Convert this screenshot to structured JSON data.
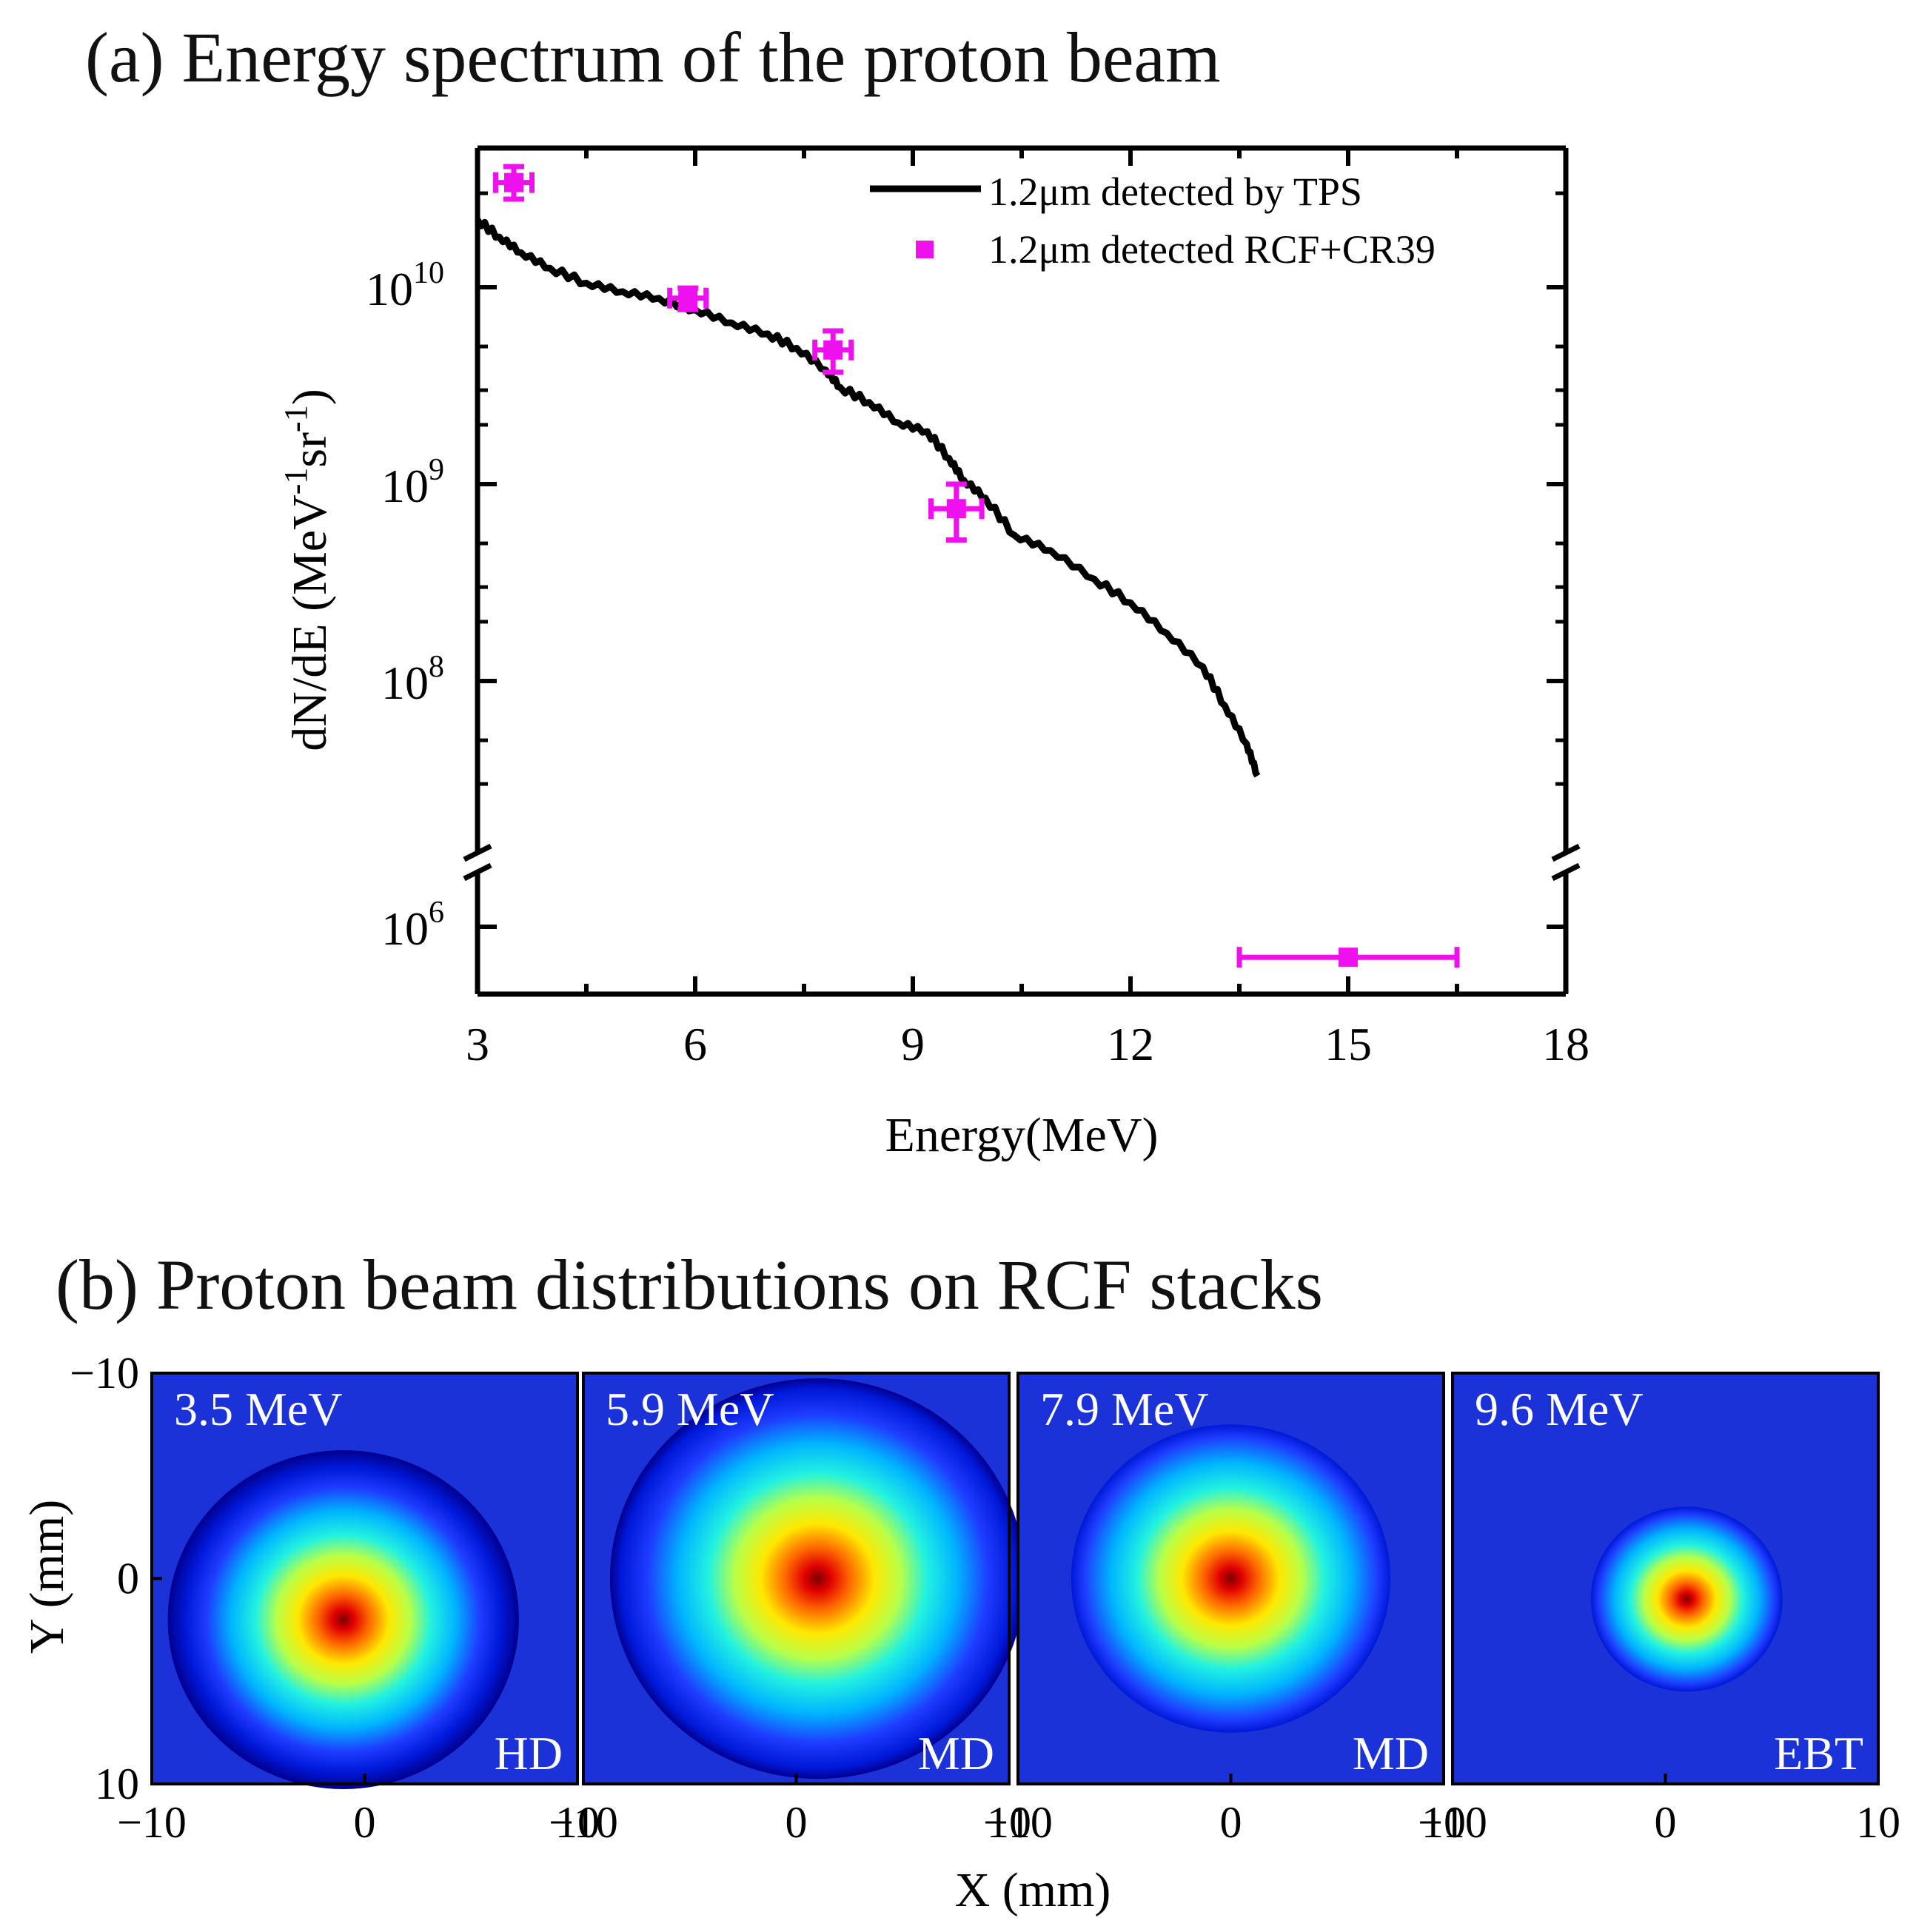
{
  "titles": {
    "a": "(a) Energy spectrum of the proton beam",
    "b": "(b) Proton beam distributions on RCF stacks"
  },
  "chart_data": [
    {
      "type": "line",
      "title": "(a) Energy spectrum of the proton beam",
      "xlabel": "Energy(MeV)",
      "ylabel": "dN/dE (MeV-1sr-1)",
      "ylabel_parts": [
        "dN/dE (MeV",
        "-1",
        "sr",
        "-1",
        ")"
      ],
      "xlim": [
        3,
        18
      ],
      "x_ticks": [
        "3",
        "6",
        "9",
        "12",
        "15",
        "18"
      ],
      "y_scale": "log",
      "y_axis_break": true,
      "y_ticks": [
        {
          "base": "10",
          "exp": "10",
          "value": 10000000000.0
        },
        {
          "base": "10",
          "exp": "9",
          "value": 1000000000.0
        },
        {
          "base": "10",
          "exp": "8",
          "value": 100000000.0
        },
        {
          "base": "10",
          "exp": "6",
          "value": 1000000.0
        }
      ],
      "legend_position": "top-right",
      "colors": {
        "tps": "#000000",
        "rcf": "#ee11ee"
      },
      "series": [
        {
          "name": "1.2μm detected by TPS",
          "kind": "line",
          "x": [
            3.0,
            3.3,
            3.6,
            4.0,
            4.5,
            5.0,
            5.5,
            6.0,
            6.5,
            7.0,
            7.4,
            7.8,
            8.0,
            8.4,
            8.8,
            9.2,
            9.5,
            9.7,
            10.0,
            10.4,
            10.9,
            11.5,
            12.0,
            12.5,
            13.0,
            13.3,
            13.6,
            13.75
          ],
          "y": [
            22000000000.0,
            18000000000.0,
            15000000000.0,
            12500000000.0,
            10500000000.0,
            9500000000.0,
            8800000000.0,
            7700000000.0,
            6600000000.0,
            5800000000.0,
            4900000000.0,
            3800000000.0,
            3100000000.0,
            2600000000.0,
            2050000000.0,
            1850000000.0,
            1350000000.0,
            1050000000.0,
            850000000.0,
            550000000.0,
            460000000.0,
            330000000.0,
            250000000.0,
            175000000.0,
            118000000.0,
            75000000.0,
            48000000.0,
            33000000.0
          ]
        },
        {
          "name": "1.2μm detected RCF+CR39",
          "kind": "scatter",
          "points": [
            {
              "x": 3.5,
              "y": 34000000000.0,
              "xerr": 0.25,
              "ylo": 28000000000.0,
              "yhi": 41000000000.0
            },
            {
              "x": 5.9,
              "y": 8800000000.0,
              "xerr": 0.25,
              "ylo": 7700000000.0,
              "yhi": 9900000000.0
            },
            {
              "x": 7.9,
              "y": 4800000000.0,
              "xerr": 0.25,
              "ylo": 3700000000.0,
              "yhi": 6000000000.0
            },
            {
              "x": 9.6,
              "y": 750000000.0,
              "xerr": 0.35,
              "ylo": 520000000.0,
              "yhi": 1000000000.0
            },
            {
              "x": 15.0,
              "y": 700000.0,
              "xerr": 1.5,
              "ylo": 700000.0,
              "yhi": 700000.0
            }
          ]
        }
      ]
    },
    {
      "type": "heatmap",
      "title": "(b) Proton beam distributions on RCF stacks",
      "xlabel": "X (mm)",
      "ylabel": "Y (mm)",
      "xlim": [
        -10,
        10
      ],
      "ylim": [
        -10,
        10
      ],
      "x_ticks": [
        "−10",
        "0",
        "10"
      ],
      "y_ticks": [
        "−10",
        "0",
        "10"
      ],
      "colormap": "jet",
      "panels": [
        {
          "energy": "3.5 MeV",
          "film": "HD",
          "center": [
            -1,
            2
          ],
          "radius_mm": 5.5,
          "intensity": 1.0
        },
        {
          "energy": "5.9 MeV",
          "film": "MD",
          "center": [
            1,
            0
          ],
          "radius_mm": 6.5,
          "intensity": 0.95
        },
        {
          "energy": "7.9 MeV",
          "film": "MD",
          "center": [
            0,
            0
          ],
          "radius_mm": 5.0,
          "intensity": 0.85
        },
        {
          "energy": "9.6 MeV",
          "film": "EBT",
          "center": [
            1,
            1
          ],
          "radius_mm": 3.0,
          "intensity": 0.85
        }
      ]
    }
  ]
}
